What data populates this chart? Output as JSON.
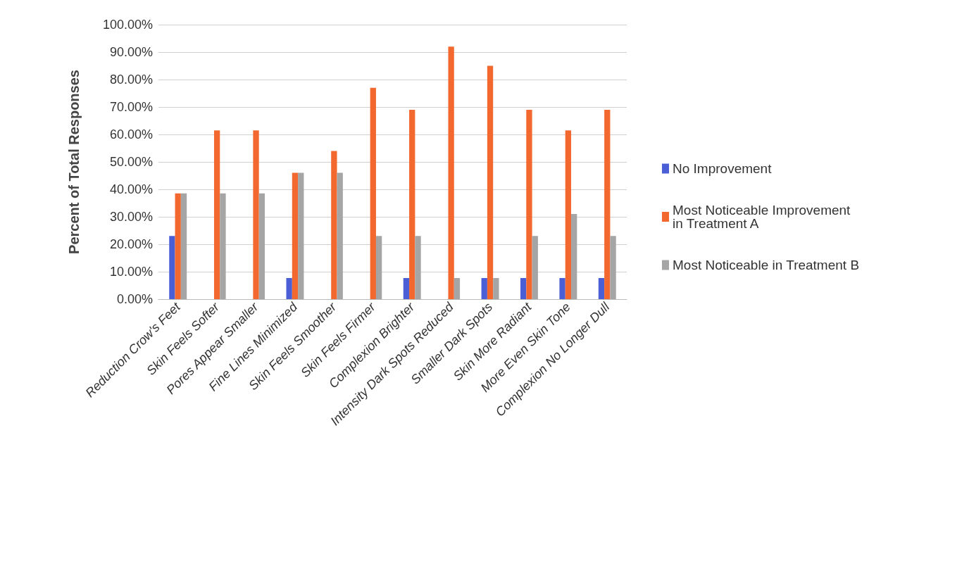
{
  "chart_data": {
    "type": "bar",
    "ylabel": "Percent of Total Responses",
    "categories": [
      "Reduction Crow's Feet",
      "Skin Feels Softer",
      "Pores Appear Smaller",
      "Fine Lines Minimized",
      "Skin Feels Smoother",
      "Skin Feels Firmer",
      "Complexion Brighter",
      "Intensity Dark Spots Reduced",
      "Smaller Dark Spots",
      "Skin More Radiant",
      "More Even Skin Tone",
      "Complexion No Longer Dull"
    ],
    "series": [
      {
        "name": "No Improvement",
        "color": "#4a5fd6",
        "values": [
          23,
          0,
          0,
          7.7,
          0,
          0,
          7.7,
          0,
          7.7,
          7.7,
          7.7,
          7.7
        ]
      },
      {
        "name": "Most Noticeable Improvement in Treatment A",
        "color": "#f2682e",
        "values": [
          38.5,
          61.5,
          61.5,
          46,
          54,
          77,
          69,
          92,
          85,
          69,
          61.5,
          69
        ]
      },
      {
        "name": "Most Noticeable in Treatment B",
        "color": "#a5a5a5",
        "values": [
          38.5,
          38.5,
          38.5,
          46,
          46,
          23,
          23,
          7.7,
          7.7,
          23,
          31,
          23
        ]
      }
    ],
    "ylim": [
      0,
      100
    ],
    "yticks": [
      {
        "value": 0,
        "label": "0.00%"
      },
      {
        "value": 10,
        "label": "10.00%"
      },
      {
        "value": 20,
        "label": "20.00%"
      },
      {
        "value": 30,
        "label": "30.00%"
      },
      {
        "value": 40,
        "label": "40.00%"
      },
      {
        "value": 50,
        "label": "50.00%"
      },
      {
        "value": 60,
        "label": "60.00%"
      },
      {
        "value": 70,
        "label": "70.00%"
      },
      {
        "value": 80,
        "label": "80.00%"
      },
      {
        "value": 90,
        "label": "90.00%"
      },
      {
        "value": 100,
        "label": "100.00%"
      }
    ],
    "grid": "y",
    "legend": "right"
  }
}
